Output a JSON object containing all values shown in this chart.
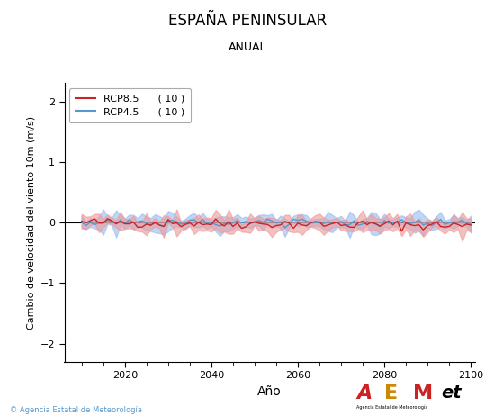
{
  "title": "ESPAÑA PENINSULAR",
  "subtitle": "ANUAL",
  "xlabel": "Año",
  "ylabel": "Cambio de velocidad del viento 10m (m/s)",
  "xlim": [
    2006,
    2101
  ],
  "ylim": [
    -2.3,
    2.3
  ],
  "yticks": [
    -2,
    -1,
    0,
    1,
    2
  ],
  "xticks": [
    2020,
    2040,
    2060,
    2080,
    2100
  ],
  "rcp85_color": "#cc2222",
  "rcp45_color": "#5599cc",
  "rcp85_fill_color": "#ee9999",
  "rcp45_fill_color": "#99bbee",
  "rcp85_label": "RCP8.5",
  "rcp45_label": "RCP4.5",
  "rcp85_n": "( 10 )",
  "rcp45_n": "( 10 )",
  "background_color": "#ffffff",
  "watermark": "© Agencia Estatal de Meteorología",
  "seed": 42,
  "n_years": 91,
  "start_year": 2010
}
